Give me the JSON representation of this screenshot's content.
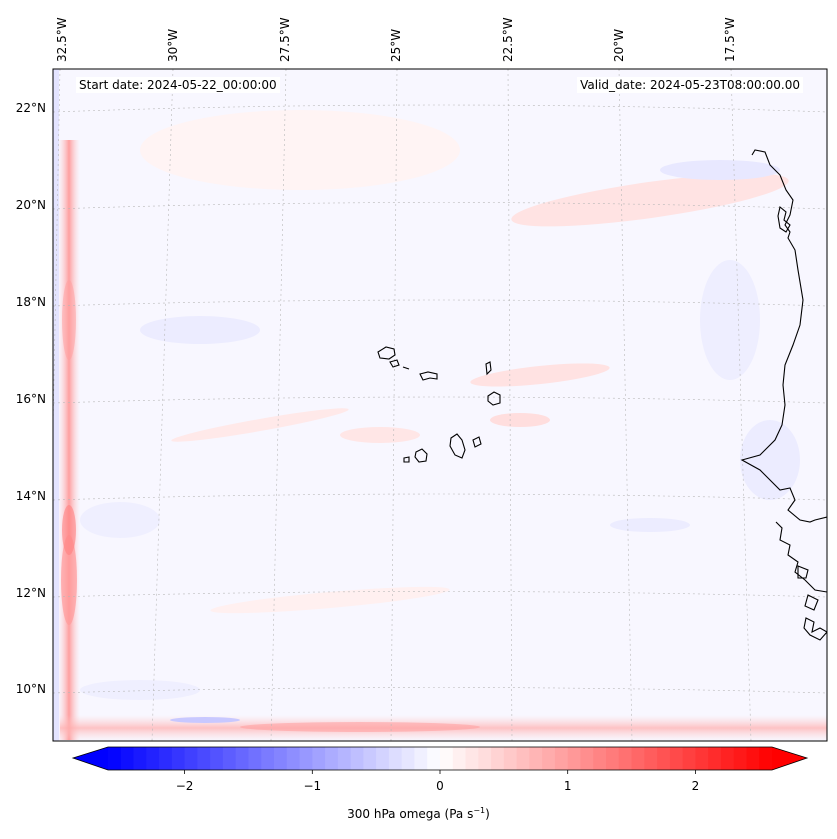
{
  "map": {
    "start_date": "Start date: 2024-05-22_00:00:00",
    "valid_date": "Valid_date: 2024-05-23T08:00:00.00",
    "lon_labels": [
      "32.5°W",
      "30°W",
      "27.5°W",
      "25°W",
      "22.5°W",
      "20°W",
      "17.5°W"
    ],
    "lat_labels": [
      "22°N",
      "20°N",
      "18°N",
      "16°N",
      "14°N",
      "12°N",
      "10°N"
    ],
    "colormap": "bwr",
    "coastline_color": "#000000"
  },
  "colorbar": {
    "label_prefix": "300 hPa omega (Pa s",
    "label_exp": "−1",
    "label_suffix": ")",
    "ticks": [
      -2,
      -1,
      0,
      1,
      2
    ],
    "tick_labels": [
      "−2",
      "−1",
      "0",
      "1",
      "2"
    ],
    "range": [
      -2.6,
      2.6
    ],
    "extend": "both",
    "min_color": "#0000ff",
    "mid_color": "#ffffff",
    "max_color": "#ff0000"
  }
}
